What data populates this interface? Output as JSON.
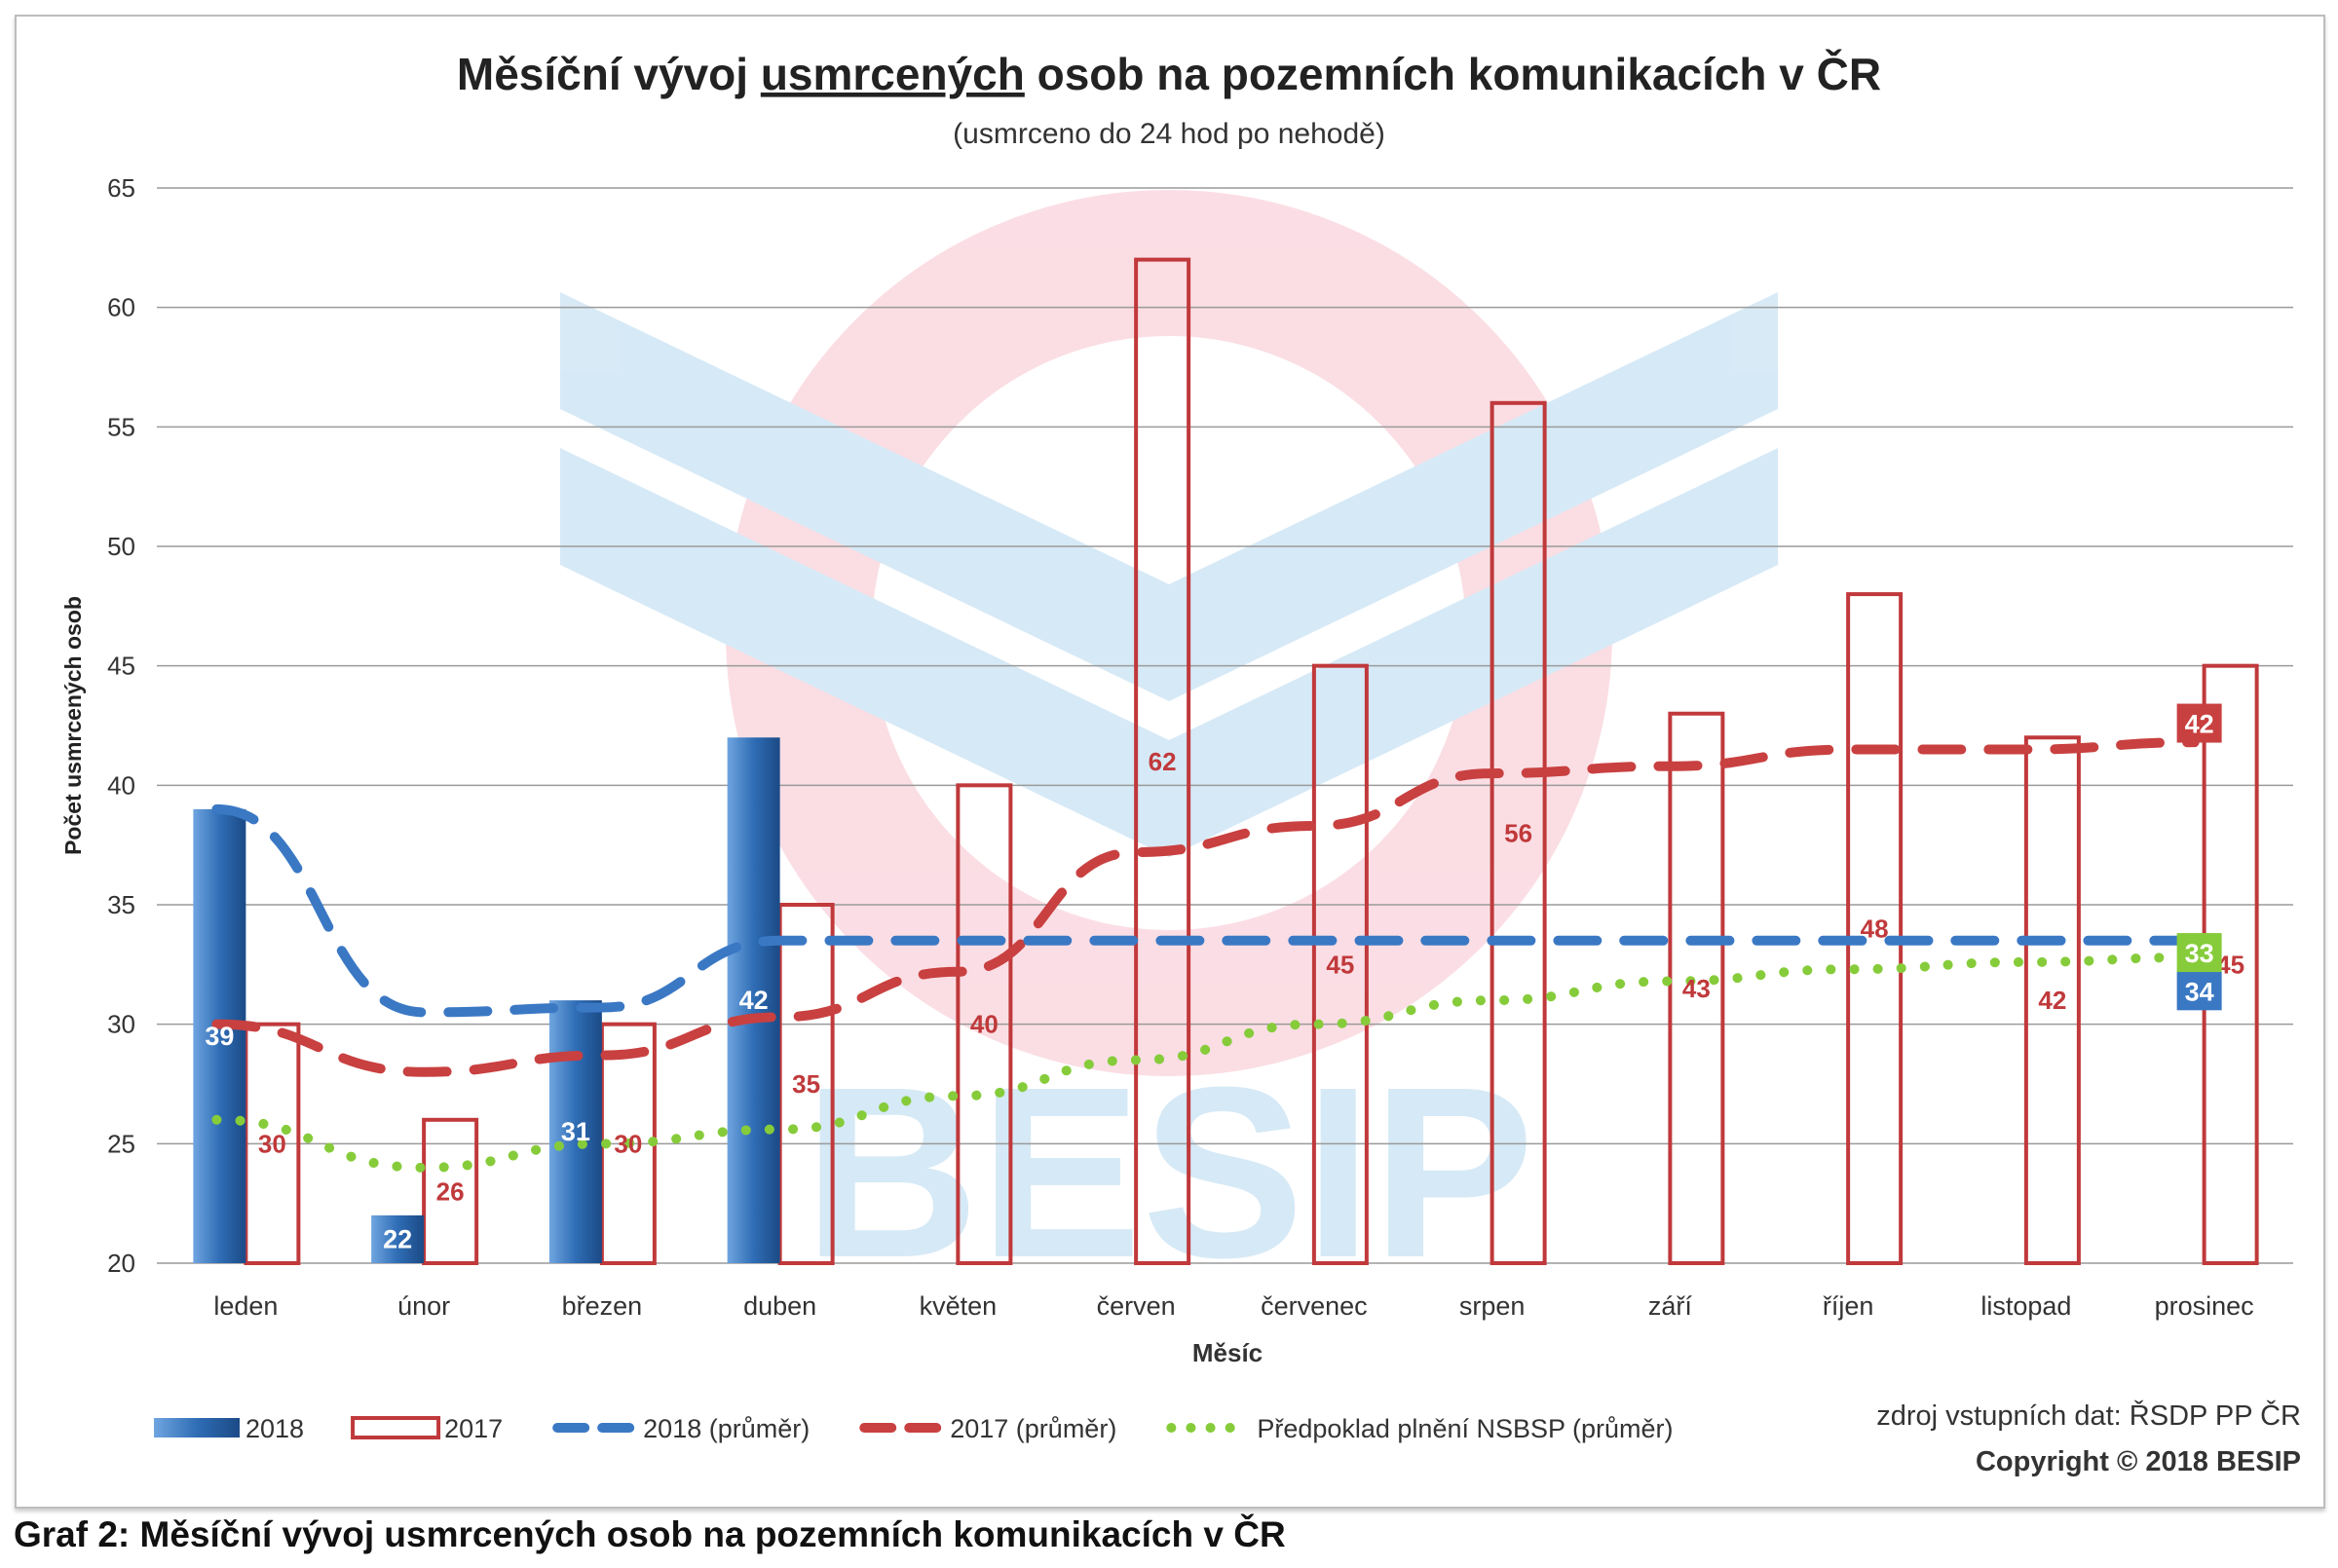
{
  "chart_data": {
    "type": "bar",
    "title_parts": [
      "Měsíční vývoj ",
      "usmrcených",
      " osob na pozemních komunikacích v ČR"
    ],
    "subtitle": "(usmrceno do 24 hod po nehodě)",
    "xlabel": "Měsíc",
    "ylabel": "Počet usmrcených osob",
    "ylim": [
      20,
      65
    ],
    "yticks": [
      20,
      25,
      30,
      35,
      40,
      45,
      50,
      55,
      60,
      65
    ],
    "grid": true,
    "legend_position": "bottom",
    "categories": [
      "leden",
      "únor",
      "březen",
      "duben",
      "květen",
      "červen",
      "červenec",
      "srpen",
      "září",
      "říjen",
      "listopad",
      "prosinec"
    ],
    "series": [
      {
        "name": "2018",
        "kind": "bar",
        "color": "#2f6db5",
        "values": [
          39,
          22,
          31,
          42,
          null,
          null,
          null,
          null,
          null,
          null,
          null,
          null
        ]
      },
      {
        "name": "2017",
        "kind": "bar-outline",
        "color": "#c0393b",
        "values": [
          30,
          26,
          30,
          35,
          40,
          62,
          45,
          56,
          43,
          48,
          42,
          45
        ]
      },
      {
        "name": "2018 (průměr)",
        "kind": "dashed-line",
        "color": "#3a78c4",
        "values": [
          39,
          30.5,
          30.7,
          33.5,
          33.5,
          33.5,
          33.5,
          33.5,
          33.5,
          33.5,
          33.5,
          33.5
        ],
        "end_label": "34"
      },
      {
        "name": "2017 (průměr)",
        "kind": "dashed-line",
        "color": "#c94040",
        "values": [
          30,
          28,
          28.7,
          30.3,
          32.2,
          37.2,
          38.3,
          40.5,
          40.8,
          41.5,
          41.5,
          41.8
        ],
        "end_label": "42"
      },
      {
        "name": "Předpoklad plnění NSBSP (průměr)",
        "kind": "dotted-line",
        "color": "#86cc3a",
        "values": [
          26,
          24,
          25,
          25.6,
          27,
          28.5,
          30,
          31,
          31.8,
          32.3,
          32.6,
          32.8
        ],
        "end_label": "33"
      }
    ],
    "source": "zdroj vstupních dat: ŘSDP PP ČR",
    "copyright": "Copyright © 2018 BESIP",
    "watermark": "BESIP"
  },
  "caption": "Graf 2: Měsíční vývoj usmrcených osob na pozemních komunikacích v ČR"
}
